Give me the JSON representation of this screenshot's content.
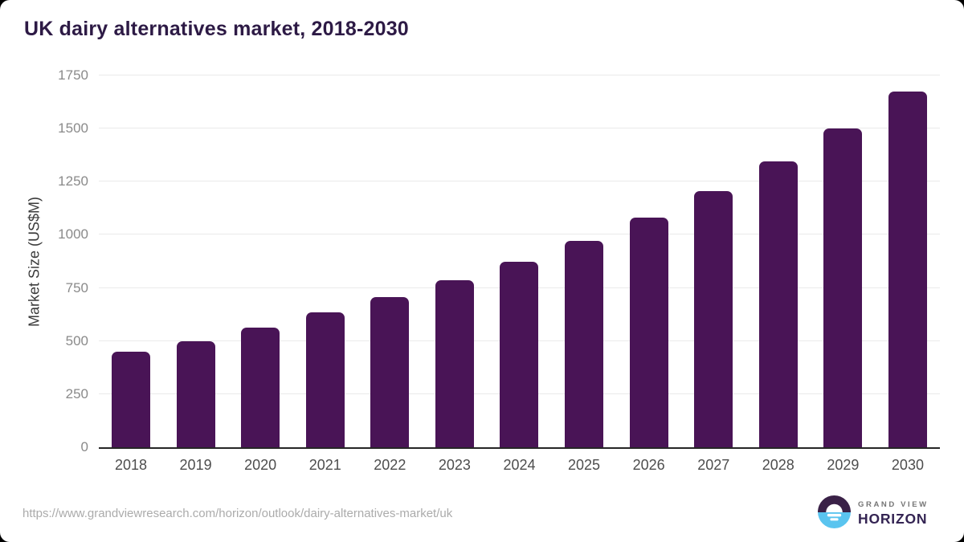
{
  "page": {
    "title": "UK dairy alternatives market, 2018-2030",
    "source_url": "https://www.grandviewresearch.com/horizon/outlook/dairy-alternatives-market/uk"
  },
  "logo": {
    "icon": "horizon-sun-logo-icon",
    "line1": "GRAND VIEW",
    "line2": "HORIZON",
    "colors": {
      "circle_top": "#3a2147",
      "circle_bottom": "#5ac4ef",
      "wordmark": "#342453",
      "tagline": "#757575"
    }
  },
  "chart_data": {
    "type": "bar",
    "title": "UK dairy alternatives market, 2018-2030",
    "categories": [
      "2018",
      "2019",
      "2020",
      "2021",
      "2022",
      "2023",
      "2024",
      "2025",
      "2026",
      "2027",
      "2028",
      "2029",
      "2030"
    ],
    "values": [
      450,
      500,
      565,
      635,
      705,
      785,
      875,
      970,
      1080,
      1205,
      1345,
      1500,
      1675
    ],
    "xlabel": "",
    "ylabel": "Market Size (US$M)",
    "ylim": [
      0,
      1750
    ],
    "yticks": [
      0,
      250,
      500,
      750,
      1000,
      1250,
      1500,
      1750
    ],
    "grid": true,
    "legend": false,
    "bar_color": "#491456",
    "gridline_color": "#eaeaea",
    "axis_line_color": "#262626"
  }
}
